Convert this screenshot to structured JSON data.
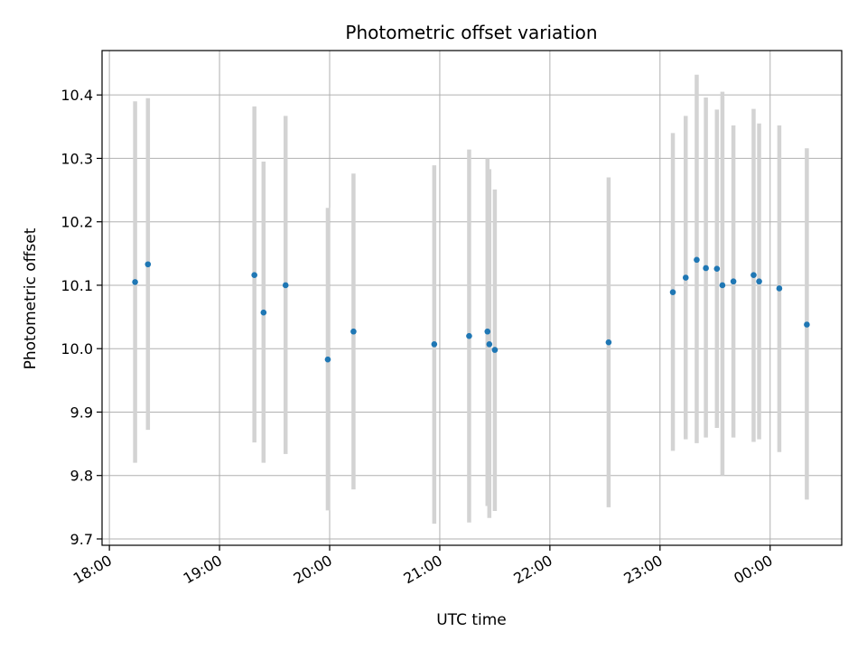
{
  "chart_data": {
    "type": "scatter",
    "title": "Photometric offset variation",
    "xlabel": "UTC time",
    "ylabel": "Photometric offset",
    "xlim": [
      "17:56",
      "00:39"
    ],
    "ylim": [
      9.69,
      10.47
    ],
    "grid": true,
    "colors": {
      "point": "#1f77b4",
      "errorbar": "#d3d3d3",
      "grid": "#b0b0b0",
      "axes": "#000000"
    },
    "x_ticks": [
      "18:00",
      "19:00",
      "20:00",
      "21:00",
      "22:00",
      "23:00",
      "00:00"
    ],
    "y_ticks": [
      "9.7",
      "9.8",
      "9.9",
      "10.0",
      "10.1",
      "10.2",
      "10.3",
      "10.4"
    ],
    "points": [
      {
        "t": "18:14",
        "y": 10.105,
        "ylow": 9.82,
        "yhigh": 10.39
      },
      {
        "t": "18:21",
        "y": 10.133,
        "ylow": 9.872,
        "yhigh": 10.395
      },
      {
        "t": "19:19",
        "y": 10.116,
        "ylow": 9.852,
        "yhigh": 10.382
      },
      {
        "t": "19:24",
        "y": 10.057,
        "ylow": 9.82,
        "yhigh": 10.295
      },
      {
        "t": "19:36",
        "y": 10.1,
        "ylow": 9.834,
        "yhigh": 10.367
      },
      {
        "t": "19:59",
        "y": 9.983,
        "ylow": 9.745,
        "yhigh": 10.222
      },
      {
        "t": "20:13",
        "y": 10.027,
        "ylow": 9.778,
        "yhigh": 10.276
      },
      {
        "t": "20:57",
        "y": 10.007,
        "ylow": 9.724,
        "yhigh": 10.289
      },
      {
        "t": "21:16",
        "y": 10.02,
        "ylow": 9.726,
        "yhigh": 10.314
      },
      {
        "t": "21:26",
        "y": 10.027,
        "ylow": 9.752,
        "yhigh": 10.3
      },
      {
        "t": "21:27",
        "y": 10.007,
        "ylow": 9.733,
        "yhigh": 10.283
      },
      {
        "t": "21:30",
        "y": 9.998,
        "ylow": 9.744,
        "yhigh": 10.251
      },
      {
        "t": "22:32",
        "y": 10.01,
        "ylow": 9.75,
        "yhigh": 10.27
      },
      {
        "t": "23:07",
        "y": 10.089,
        "ylow": 9.839,
        "yhigh": 10.34
      },
      {
        "t": "23:14",
        "y": 10.112,
        "ylow": 9.857,
        "yhigh": 10.367
      },
      {
        "t": "23:20",
        "y": 10.14,
        "ylow": 9.851,
        "yhigh": 10.432
      },
      {
        "t": "23:25",
        "y": 10.127,
        "ylow": 9.86,
        "yhigh": 10.396
      },
      {
        "t": "23:31",
        "y": 10.126,
        "ylow": 9.875,
        "yhigh": 10.377
      },
      {
        "t": "23:34",
        "y": 10.1,
        "ylow": 9.8,
        "yhigh": 10.405
      },
      {
        "t": "23:40",
        "y": 10.106,
        "ylow": 9.86,
        "yhigh": 10.352
      },
      {
        "t": "23:51",
        "y": 10.116,
        "ylow": 9.853,
        "yhigh": 10.378
      },
      {
        "t": "23:54",
        "y": 10.106,
        "ylow": 9.857,
        "yhigh": 10.355
      },
      {
        "t": "00:05",
        "y": 10.095,
        "ylow": 9.837,
        "yhigh": 10.352
      },
      {
        "t": "00:20",
        "y": 10.038,
        "ylow": 9.762,
        "yhigh": 10.316
      }
    ]
  }
}
